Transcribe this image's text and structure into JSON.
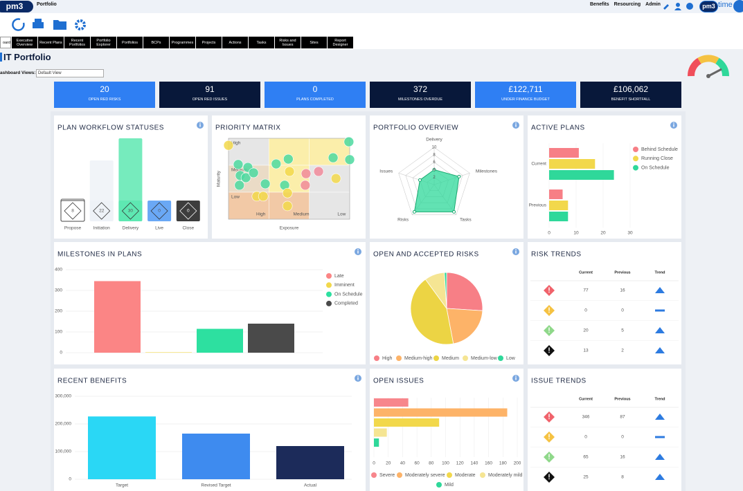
{
  "header": {
    "logo": "pm3",
    "app": "Portfolio",
    "links": [
      "Benefits",
      "Resourcing",
      "Admin"
    ],
    "brand": "pm3",
    "brand_word": "time"
  },
  "tabs": [
    "oard",
    "Executive Overview",
    "Recent Plans",
    "Recent Portfolios",
    "Portfolio Explorer",
    "Portfolios",
    "BCPs",
    "Programmes",
    "Projects",
    "Actions",
    "Tasks",
    "Risks and Issues",
    "Sites",
    "Report Designer"
  ],
  "page": {
    "title": "IT Portfolio",
    "views_label": "ashboard Views:",
    "views_value": "Default View"
  },
  "kpis": [
    {
      "value": 20,
      "label": "OPEN RED RISKS",
      "color": "#2f7ff3"
    },
    {
      "value": 91,
      "label": "OPEN RED ISSUES",
      "color": "#08183a"
    },
    {
      "value": 0,
      "label": "PLANS COMPLETED",
      "color": "#2f7ff3"
    },
    {
      "value": 372,
      "label": "MILESTONES OVERDUE",
      "color": "#08183a"
    },
    {
      "value": "£122,711",
      "label": "UNDER FINANCE BUDGET",
      "color": "#2f7ff3"
    },
    {
      "value": "£106,062",
      "label": "BENEFIT SHORTFALL",
      "color": "#08183a"
    }
  ],
  "chart_data": [
    {
      "type": "status",
      "title": "PLAN WORKFLOW STATUSES",
      "categories": [
        "Propose",
        "Initiation",
        "Delivery",
        "Live",
        "Close"
      ],
      "values": [
        8,
        22,
        30,
        0,
        0
      ],
      "colors": [
        "#ffffff",
        "#eef2f7",
        "#5ee8b2",
        "#6aa8f5",
        "#3d3d3d"
      ],
      "ylim": [
        0,
        30
      ]
    },
    {
      "type": "scatter",
      "title": "PRIORITY MATRIX",
      "y_title": "Maturity",
      "x_title": "Exposure",
      "y_labels": [
        "High",
        "Medium",
        "Low"
      ],
      "x_labels": [
        "High",
        "Medium",
        "Low"
      ],
      "cell_colors": [
        [
          "#e6e6e6",
          "#fbeeaa",
          "#fbeeaa"
        ],
        [
          "#eadbc6",
          "#fbeeaa",
          "#e6e6e6"
        ],
        [
          "#f2c9a6",
          "#f2c9a6",
          "#e6e6e6"
        ]
      ],
      "xlim": [
        0,
        3
      ],
      "ylim": [
        0,
        3
      ],
      "x": [
        0.0,
        0.24,
        0.48,
        0.29,
        0.27,
        0.43,
        0.62,
        0.91,
        1.18,
        1.48,
        1.51,
        1.39,
        1.46,
        1.46,
        0.7,
        0.86,
        1.92,
        1.9,
        2.23,
        2.59,
        2.66,
        2.98,
        3.0
      ],
      "y": [
        2.74,
        2.03,
        1.92,
        1.62,
        1.26,
        1.54,
        1.72,
        1.31,
        2.05,
        2.23,
        1.77,
        1.26,
        0.97,
        0.49,
        0.85,
        0.85,
        1.69,
        1.26,
        1.77,
        2.28,
        1.51,
        2.87,
        2.21
      ],
      "colors": [
        "#f2d84b",
        "#4cd9a0",
        "#4cd9a0",
        "#4cd9a0",
        "#4cd9a0",
        "#4cd9a0",
        "#4cd9a0",
        "#4cd9a0",
        "#4cd9a0",
        "#4cd9a0",
        "#f2d84b",
        "#4cd9a0",
        "#f2d84b",
        "#f2d84b",
        "#f2d84b",
        "#f2d84b",
        "#f08a9a",
        "#f08a9a",
        "#f08a9a",
        "#4cd9a0",
        "#f2d84b",
        "#4cd9a0",
        "#4cd9a0"
      ]
    },
    {
      "type": "radar",
      "title": "PORTFOLIO OVERVIEW",
      "categories": [
        "Delivery",
        "Milestones",
        "Tasks",
        "Risks",
        "Issues"
      ],
      "values": [
        4,
        7,
        9,
        9,
        4
      ],
      "rlim": [
        0,
        10
      ],
      "rticks": [
        2,
        4,
        6,
        8,
        10
      ],
      "color": "#2ed89a"
    },
    {
      "type": "hbar",
      "title": "ACTIVE PLANS",
      "categories": [
        "Current",
        "Previous"
      ],
      "series": [
        {
          "name": "Behind Schedule",
          "color": "#f77f86",
          "values": [
            11,
            5
          ]
        },
        {
          "name": "Running Close",
          "color": "#f2d84b",
          "values": [
            17,
            7
          ]
        },
        {
          "name": "On Schedule",
          "color": "#2fd89a",
          "values": [
            24,
            7
          ]
        }
      ],
      "xlim": [
        0,
        30
      ],
      "xticks": [
        0,
        10,
        20,
        30
      ],
      "grid": true
    },
    {
      "type": "bar",
      "title": "MILESTONES IN PLANS",
      "series": [
        {
          "name": "Late",
          "color": "#fb8585",
          "values": [
            345
          ]
        },
        {
          "name": "Imminent",
          "color": "#f2d84b",
          "values": [
            2
          ]
        },
        {
          "name": "On Schedule",
          "color": "#2de0a0",
          "values": [
            115
          ]
        },
        {
          "name": "Completed",
          "color": "#4a4a4a",
          "values": [
            140
          ]
        }
      ],
      "ylim": [
        0,
        400
      ],
      "yticks": [
        0,
        100,
        200,
        300,
        400
      ],
      "grid": true
    },
    {
      "type": "pie",
      "title": "OPEN AND ACCEPTED RISKS",
      "categories": [
        "High",
        "Medium-high",
        "Medium",
        "Medium-low",
        "Low"
      ],
      "values": [
        26,
        21,
        43,
        9,
        1
      ],
      "colors": [
        "#f77f86",
        "#fdb368",
        "#ecd444",
        "#f5e593",
        "#2fd89a"
      ]
    },
    {
      "type": "bar",
      "title": "RECENT BENEFITS",
      "categories": [
        "Target",
        "Revised Target",
        "Actual"
      ],
      "values": [
        227000,
        165000,
        120000
      ],
      "colors": [
        "#2ad7f5",
        "#3e8bef",
        "#1c2b5a"
      ],
      "ylim": [
        0,
        300000
      ],
      "yticks": [
        0,
        {
          "value": 100000,
          "label": "100,000"
        },
        {
          "value": 200000,
          "label": "200,000"
        },
        {
          "value": 300000,
          "label": "300,000"
        }
      ],
      "grid": true
    },
    {
      "type": "hbar",
      "title": "OPEN ISSUES",
      "series": [
        {
          "name": "Severe",
          "color": "#f7868c",
          "values": [
            48
          ]
        },
        {
          "name": "Moderately severe",
          "color": "#fdb368",
          "values": [
            186
          ]
        },
        {
          "name": "Moderate",
          "color": "#f2d84b",
          "values": [
            91
          ]
        },
        {
          "name": "Moderately mild",
          "color": "#f5e593",
          "values": [
            18
          ]
        },
        {
          "name": "Mild",
          "color": "#2fd89a",
          "values": [
            7
          ]
        }
      ],
      "xlim": [
        0,
        200
      ],
      "xticks": [
        0,
        20,
        40,
        60,
        80,
        100,
        120,
        140,
        160,
        180,
        200
      ],
      "grid": true
    }
  ],
  "tables": [
    {
      "title": "RISK TRENDS",
      "columns": [
        "Current",
        "Previous",
        "Trend"
      ],
      "rows": [
        {
          "color": "#f0626b",
          "current": 77,
          "previous": 16
        },
        {
          "color": "#f5c242",
          "current": 0,
          "previous": 0
        },
        {
          "color": "#8fd88a",
          "current": 20,
          "previous": 5
        },
        {
          "color": "#111111",
          "current": 13,
          "previous": 2
        }
      ]
    },
    {
      "title": "ISSUE TRENDS",
      "columns": [
        "Current",
        "Previous",
        "Trend"
      ],
      "rows": [
        {
          "color": "#f0626b",
          "current": 346,
          "previous": 87
        },
        {
          "color": "#f5c242",
          "current": 0,
          "previous": 0
        },
        {
          "color": "#8fd88a",
          "current": 65,
          "previous": 16
        },
        {
          "color": "#111111",
          "current": 25,
          "previous": 8
        }
      ]
    }
  ]
}
